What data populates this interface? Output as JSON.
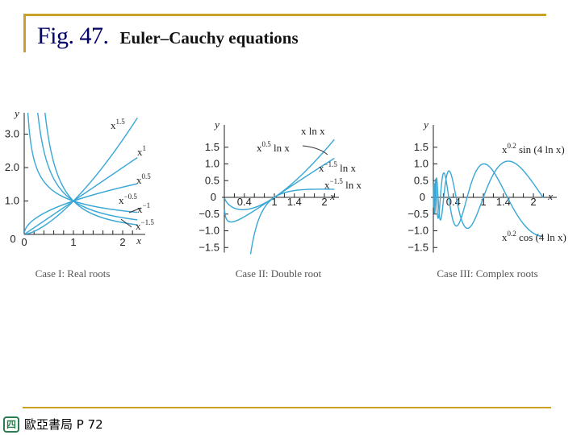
{
  "title": {
    "fig": "Fig. 47.",
    "subtitle": "Euler–Cauchy equations"
  },
  "footer": {
    "logo": "四",
    "text": "歐亞書局 P 72"
  },
  "chart_data": [
    {
      "type": "line",
      "caption": "Case I: Real roots",
      "ylabel": "y",
      "xlabel": "x",
      "xlim": [
        0,
        2.4
      ],
      "ylim": [
        0,
        3.4
      ],
      "xticks": [
        0,
        1,
        2
      ],
      "yticks": [
        1.0,
        2.0,
        3.0
      ],
      "xtick_labels": [
        "0",
        "1",
        "2"
      ],
      "ytick_labels": [
        "1.0",
        "2.0",
        "3.0"
      ],
      "color": "#3aa7d6",
      "series": [
        {
          "name": "x^1.5",
          "base": "x",
          "exp": "1.5",
          "m": 1.5
        },
        {
          "name": "x^1",
          "base": "x",
          "exp": "1",
          "m": 1
        },
        {
          "name": "x^0.5",
          "base": "x",
          "exp": "0.5",
          "m": 0.5
        },
        {
          "name": "x^-0.5",
          "base": "x",
          "exp": "−0.5",
          "m": -0.5
        },
        {
          "name": "x^-1",
          "base": "x",
          "exp": "−1",
          "m": -1
        },
        {
          "name": "x^-1.5",
          "base": "x",
          "exp": "−1.5",
          "m": -1.5
        }
      ]
    },
    {
      "type": "line",
      "caption": "Case II: Double root",
      "ylabel": "y",
      "xlabel": "x",
      "xlim": [
        0,
        2.3
      ],
      "ylim": [
        -1.7,
        1.8
      ],
      "xticks": [
        0.4,
        1,
        1.4,
        2
      ],
      "yticks": [
        -1.5,
        -1.0,
        -0.5,
        0.5,
        1.0,
        1.5
      ],
      "xtick_labels": [
        "0.4",
        "1",
        "1.4",
        "2"
      ],
      "ytick_labels": [
        "−1.5",
        "−1.0",
        "−0.5",
        "0.5",
        "1.0",
        "1.5"
      ],
      "origin_label": "0",
      "color": "#3aa7d6",
      "series": [
        {
          "name": "x ln x",
          "base": "x ln x",
          "exp": "",
          "m": 1
        },
        {
          "name": "x^0.5 ln x",
          "base": "x",
          "exp": "0.5",
          "tail": " ln x",
          "m": 0.5
        },
        {
          "name": "x^-1.5 ln x",
          "base": "x",
          "exp": "−1.5",
          "tail": " ln x",
          "m": -1.5
        }
      ]
    },
    {
      "type": "line",
      "caption": "Case III: Complex roots",
      "ylabel": "y",
      "xlabel": "x",
      "xlim": [
        0,
        2.3
      ],
      "ylim": [
        -1.7,
        1.8
      ],
      "xticks": [
        0.4,
        1,
        1.4,
        2
      ],
      "yticks": [
        -1.5,
        -1.0,
        -0.5,
        0.5,
        1.0,
        1.5
      ],
      "xtick_labels": [
        "0.4",
        "1",
        "1.4",
        "2"
      ],
      "ytick_labels": [
        "−1.5",
        "−1.0",
        "−0.5",
        "0.5",
        "1.0",
        "1.5"
      ],
      "origin_label": "0",
      "color": "#3aa7d6",
      "series": [
        {
          "name": "x^0.2 sin (4 ln x)",
          "base": "x",
          "exp": "0.2",
          "tail": " sin (4 ln x)",
          "fn": "sin"
        },
        {
          "name": "x^0.2 cos (4 ln x)",
          "base": "x",
          "exp": "0.2",
          "tail": " cos (4 ln x)",
          "fn": "cos"
        }
      ]
    }
  ]
}
